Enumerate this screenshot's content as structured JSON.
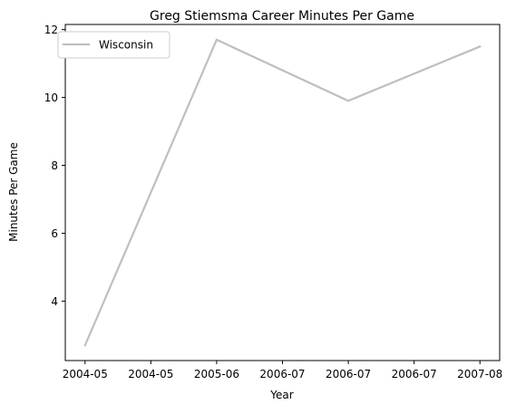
{
  "chart_data": {
    "type": "line",
    "title": "Greg Stiemsma Career Minutes Per Game",
    "xlabel": "Year",
    "ylabel": "Minutes Per Game",
    "x_ticks": [
      {
        "label": "2004-05",
        "pos": 0
      },
      {
        "label": "2004-05",
        "pos": 1
      },
      {
        "label": "2005-06",
        "pos": 2
      },
      {
        "label": "2006-07",
        "pos": 3
      },
      {
        "label": "2006-07",
        "pos": 4
      },
      {
        "label": "2006-07",
        "pos": 5
      },
      {
        "label": "2007-08",
        "pos": 6
      }
    ],
    "xlim": [
      -0.3,
      6.3
    ],
    "y_ticks": [
      4,
      6,
      8,
      10,
      12
    ],
    "ylim": [
      2.25,
      12.15
    ],
    "grid": false,
    "legend_position": "upper-left",
    "series": [
      {
        "name": "Wisconsin",
        "color": "#bfbfbf",
        "points": [
          {
            "x": 0,
            "y": 2.7
          },
          {
            "x": 2,
            "y": 11.7
          },
          {
            "x": 4,
            "y": 9.9
          },
          {
            "x": 6,
            "y": 11.5
          }
        ]
      }
    ]
  }
}
